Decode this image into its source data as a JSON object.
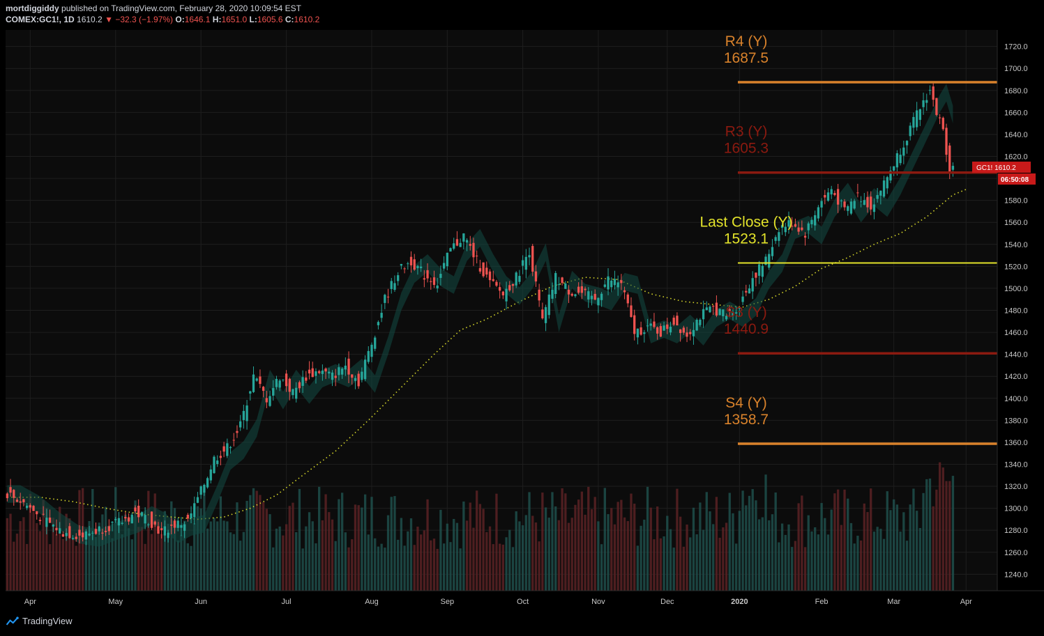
{
  "header": {
    "user": "mortdiggiddy",
    "published": "published on TradingView.com, February 28, 2020 10:09:54 EST",
    "symbol": "COMEX:GC1!, 1D",
    "last": "1610.2",
    "arrow": "▼",
    "change": "−32.3 (−1.97%)",
    "o_label": "O:",
    "o_val": "1646.1",
    "h_label": "H:",
    "h_val": "1651.0",
    "l_label": "L:",
    "l_val": "1605.6",
    "c_label": "C:",
    "c_val": "1610.2"
  },
  "price_tag": {
    "label": "GC1!",
    "value": "1610.2",
    "countdown": "06:50:08"
  },
  "footer": {
    "brand": "TradingView"
  },
  "colors": {
    "background": "#0c0c0c",
    "grid": "#1e1e1e",
    "up": "#26a69a",
    "down": "#ef5350",
    "r4": "#d9822b",
    "r3": "#8b1a10",
    "s3": "#8b1a10",
    "s4": "#d9822b",
    "last_close": "#e3e32a",
    "sma": "#d8d82a"
  },
  "chart_data": {
    "type": "candlestick",
    "title": "",
    "xlabel": "",
    "ylabel": "",
    "ylim": [
      1225,
      1735
    ],
    "yticks": [
      1240,
      1260,
      1280,
      1300,
      1320,
      1340,
      1360,
      1380,
      1400,
      1420,
      1440,
      1460,
      1480,
      1500,
      1520,
      1540,
      1560,
      1580,
      1600,
      1620,
      1640,
      1660,
      1680,
      1700,
      1720
    ],
    "xticks": [
      "Apr",
      "May",
      "Jun",
      "Jul",
      "Aug",
      "Sep",
      "Oct",
      "Nov",
      "Dec",
      "2020",
      "Feb",
      "Mar",
      "Apr"
    ],
    "xtick_index": [
      7,
      33,
      59,
      85,
      111,
      134,
      157,
      180,
      201,
      223,
      248,
      270,
      292
    ],
    "total_index": 302,
    "levels": [
      {
        "name": "R4 (Y)",
        "value": 1687.5,
        "color_key": "r4"
      },
      {
        "name": "R3 (Y)",
        "value": 1605.3,
        "color_key": "r3"
      },
      {
        "name": "Last Close (Y)",
        "value": 1523.1,
        "color_key": "last_close"
      },
      {
        "name": "S3 (Y)",
        "value": 1440.9,
        "color_key": "s3"
      },
      {
        "name": "S4 (Y)",
        "value": 1358.7,
        "color_key": "s4"
      }
    ],
    "level_labels": [
      {
        "name": "R4 (Y)",
        "value": "1687.5"
      },
      {
        "name": "R3 (Y)",
        "value": "1605.3"
      },
      {
        "name": "Last Close (Y)",
        "value": "1523.1"
      },
      {
        "name": "S3 (Y)",
        "value": "1440.9"
      },
      {
        "name": "S4 (Y)",
        "value": "1358.7"
      }
    ],
    "levels_start_index": 223,
    "close_path": [
      [
        0,
        1315
      ],
      [
        6,
        1305
      ],
      [
        12,
        1290
      ],
      [
        18,
        1278
      ],
      [
        24,
        1275
      ],
      [
        30,
        1282
      ],
      [
        36,
        1288
      ],
      [
        40,
        1296
      ],
      [
        44,
        1290
      ],
      [
        48,
        1278
      ],
      [
        52,
        1285
      ],
      [
        56,
        1288
      ],
      [
        60,
        1315
      ],
      [
        64,
        1345
      ],
      [
        68,
        1355
      ],
      [
        72,
        1375
      ],
      [
        76,
        1420
      ],
      [
        80,
        1400
      ],
      [
        84,
        1420
      ],
      [
        88,
        1405
      ],
      [
        92,
        1420
      ],
      [
        96,
        1425
      ],
      [
        100,
        1420
      ],
      [
        104,
        1430
      ],
      [
        108,
        1415
      ],
      [
        112,
        1450
      ],
      [
        116,
        1490
      ],
      [
        120,
        1515
      ],
      [
        124,
        1525
      ],
      [
        128,
        1512
      ],
      [
        132,
        1505
      ],
      [
        136,
        1535
      ],
      [
        140,
        1548
      ],
      [
        144,
        1525
      ],
      [
        148,
        1505
      ],
      [
        152,
        1495
      ],
      [
        156,
        1510
      ],
      [
        160,
        1535
      ],
      [
        164,
        1470
      ],
      [
        168,
        1510
      ],
      [
        172,
        1498
      ],
      [
        176,
        1495
      ],
      [
        180,
        1490
      ],
      [
        184,
        1508
      ],
      [
        188,
        1505
      ],
      [
        192,
        1460
      ],
      [
        196,
        1465
      ],
      [
        200,
        1460
      ],
      [
        204,
        1470
      ],
      [
        208,
        1458
      ],
      [
        212,
        1475
      ],
      [
        216,
        1482
      ],
      [
        220,
        1475
      ],
      [
        224,
        1485
      ],
      [
        228,
        1510
      ],
      [
        232,
        1525
      ],
      [
        236,
        1555
      ],
      [
        240,
        1560
      ],
      [
        244,
        1550
      ],
      [
        248,
        1575
      ],
      [
        252,
        1590
      ],
      [
        256,
        1570
      ],
      [
        260,
        1585
      ],
      [
        264,
        1575
      ],
      [
        268,
        1595
      ],
      [
        272,
        1620
      ],
      [
        276,
        1645
      ],
      [
        280,
        1670
      ],
      [
        282,
        1680
      ],
      [
        284,
        1660
      ],
      [
        286,
        1642
      ],
      [
        288,
        1610
      ]
    ],
    "volume_range": [
      0,
      1
    ],
    "sma_path": [
      [
        0,
        1310
      ],
      [
        10,
        1310
      ],
      [
        20,
        1306
      ],
      [
        30,
        1300
      ],
      [
        40,
        1295
      ],
      [
        50,
        1292
      ],
      [
        58,
        1290
      ],
      [
        66,
        1292
      ],
      [
        74,
        1300
      ],
      [
        82,
        1312
      ],
      [
        90,
        1330
      ],
      [
        100,
        1352
      ],
      [
        110,
        1380
      ],
      [
        120,
        1410
      ],
      [
        130,
        1440
      ],
      [
        138,
        1462
      ],
      [
        146,
        1472
      ],
      [
        156,
        1488
      ],
      [
        166,
        1502
      ],
      [
        176,
        1510
      ],
      [
        186,
        1508
      ],
      [
        196,
        1495
      ],
      [
        206,
        1488
      ],
      [
        216,
        1485
      ],
      [
        224,
        1483
      ],
      [
        232,
        1490
      ],
      [
        240,
        1502
      ],
      [
        248,
        1518
      ],
      [
        256,
        1528
      ],
      [
        264,
        1540
      ],
      [
        272,
        1550
      ],
      [
        280,
        1565
      ],
      [
        288,
        1585
      ],
      [
        292,
        1590
      ]
    ]
  }
}
